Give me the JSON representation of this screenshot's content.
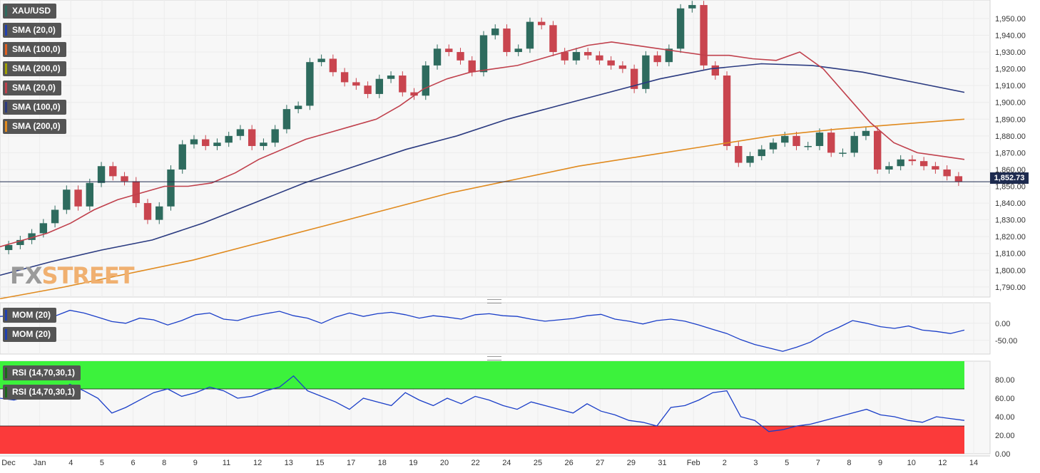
{
  "chart_data": [
    {
      "type": "candlestick",
      "symbol": "XAU/USD",
      "last_price_label": "1,852.73",
      "watermark": "FXSTREET",
      "legend": [
        {
          "label": "XAU/USD",
          "color": "#2e6b5e"
        },
        {
          "label": "SMA (20,0)",
          "color": "#2040b0"
        },
        {
          "label": "SMA (100,0)",
          "color": "#e06020"
        },
        {
          "label": "SMA (200,0)",
          "color": "#a0a000"
        },
        {
          "label": "SMA (20,0)",
          "color": "#c0404c"
        },
        {
          "label": "SMA (100,0)",
          "color": "#2a3a80"
        },
        {
          "label": "SMA (200,0)",
          "color": "#e08a1e"
        }
      ],
      "y_ticks": [
        "1,950.00",
        "1,940.00",
        "1,930.00",
        "1,920.00",
        "1,910.00",
        "1,900.00",
        "1,890.00",
        "1,880.00",
        "1,870.00",
        "1,860.00",
        "1,850.00",
        "1,840.00",
        "1,830.00",
        "1,820.00",
        "1,810.00",
        "1,800.00",
        "1,790.00"
      ],
      "ylim": [
        1784,
        1961
      ],
      "x_labels": [
        "Dec",
        "Jan",
        "4",
        "5",
        "6",
        "8",
        "9",
        "11",
        "12",
        "13",
        "15",
        "17",
        "18",
        "19",
        "20",
        "22",
        "24",
        "25",
        "26",
        "27",
        "29",
        "31",
        "Feb",
        "2",
        "3",
        "5",
        "7",
        "8",
        "9",
        "10",
        "12",
        "14"
      ],
      "close_series_approx": [
        1815,
        1818,
        1822,
        1828,
        1836,
        1848,
        1838,
        1852,
        1862,
        1856,
        1853,
        1840,
        1830,
        1838,
        1860,
        1875,
        1878,
        1874,
        1876,
        1880,
        1884,
        1874,
        1876,
        1884,
        1896,
        1898,
        1924,
        1926,
        1918,
        1912,
        1910,
        1905,
        1914,
        1916,
        1906,
        1904,
        1922,
        1932,
        1930,
        1925,
        1918,
        1940,
        1944,
        1930,
        1932,
        1948,
        1946,
        1930,
        1925,
        1930,
        1928,
        1925,
        1922,
        1920,
        1908,
        1928,
        1924,
        1932,
        1956,
        1958,
        1922,
        1916,
        1874,
        1864,
        1868,
        1872,
        1876,
        1880,
        1874,
        1874,
        1882,
        1870,
        1870,
        1880,
        1883,
        1860,
        1862,
        1866,
        1865,
        1862,
        1860,
        1856,
        1852.73
      ],
      "sma20_red": [
        1814,
        1818,
        1822,
        1828,
        1836,
        1842,
        1846,
        1850,
        1850,
        1852,
        1858,
        1866,
        1872,
        1878,
        1882,
        1886,
        1890,
        1898,
        1908,
        1914,
        1918,
        1920,
        1922,
        1926,
        1930,
        1934,
        1936,
        1934,
        1932,
        1930,
        1928,
        1928,
        1926,
        1925,
        1930,
        1920,
        1904,
        1888,
        1876,
        1870,
        1868,
        1866
      ],
      "sma100_navy": [
        1797,
        1805,
        1812,
        1818,
        1828,
        1840,
        1852,
        1862,
        1872,
        1880,
        1890,
        1898,
        1906,
        1914,
        1920,
        1923,
        1922,
        1918,
        1912,
        1906
      ],
      "sma200_orange": [
        1783,
        1790,
        1798,
        1806,
        1816,
        1826,
        1836,
        1846,
        1854,
        1862,
        1868,
        1874,
        1880,
        1884,
        1887,
        1890
      ]
    },
    {
      "type": "line",
      "title": "MOM (20)",
      "legend": [
        "MOM (20)",
        "MOM (20)"
      ],
      "y_ticks": [
        "0.00",
        "-50.00"
      ],
      "ylim": [
        -90,
        60
      ],
      "values": [
        20,
        22,
        25,
        28,
        22,
        38,
        30,
        18,
        5,
        0,
        15,
        10,
        -5,
        8,
        25,
        30,
        12,
        8,
        20,
        28,
        35,
        22,
        15,
        0,
        18,
        30,
        20,
        28,
        32,
        25,
        15,
        22,
        18,
        12,
        25,
        28,
        22,
        20,
        12,
        6,
        10,
        14,
        22,
        26,
        12,
        6,
        -2,
        8,
        12,
        6,
        -5,
        -18,
        -30,
        -48,
        -62,
        -72,
        -82,
        -70,
        -55,
        -30,
        -12,
        8,
        0,
        -10,
        -15,
        -8,
        -20,
        -24,
        -30,
        -20
      ]
    },
    {
      "type": "line",
      "title": "RSI (14,70,30,1)",
      "legend": [
        "RSI (14,70,30,1)",
        "RSI (14,70,30,1)"
      ],
      "y_ticks": [
        "80.00",
        "60.00",
        "40.00",
        "20.00",
        "0.00"
      ],
      "ylim": [
        0,
        100
      ],
      "overbought": 70,
      "oversold": 30,
      "values": [
        60,
        58,
        62,
        70,
        66,
        75,
        68,
        60,
        44,
        50,
        58,
        66,
        70,
        62,
        66,
        72,
        68,
        60,
        62,
        68,
        72,
        84,
        68,
        62,
        56,
        48,
        60,
        56,
        52,
        66,
        58,
        52,
        60,
        54,
        62,
        58,
        52,
        48,
        56,
        52,
        48,
        44,
        54,
        46,
        42,
        36,
        34,
        30,
        50,
        52,
        58,
        66,
        68,
        40,
        36,
        24,
        26,
        30,
        32,
        36,
        40,
        44,
        48,
        42,
        40,
        36,
        34,
        40,
        38,
        36
      ]
    }
  ]
}
